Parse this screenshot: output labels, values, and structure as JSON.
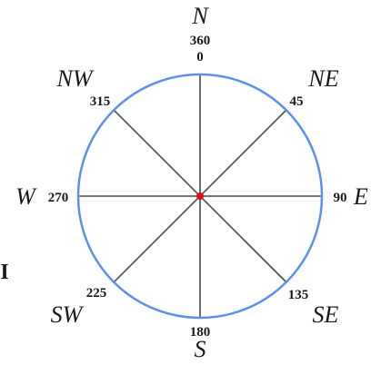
{
  "colors": {
    "circle": "#5b8ff0",
    "spokes": "#4a4a4a",
    "center": "#e01010",
    "text": "#1a1a1a"
  },
  "compass": {
    "north": {
      "letter": "N",
      "deg_top": "360",
      "deg_bottom": "0"
    },
    "northeast": {
      "letter": "NE",
      "deg": "45"
    },
    "east": {
      "letter": "E",
      "deg": "90"
    },
    "southeast": {
      "letter": "SE",
      "deg": "135"
    },
    "south": {
      "letter": "S",
      "deg": "180"
    },
    "southwest": {
      "letter": "SW",
      "deg": "225"
    },
    "west": {
      "letter": "W",
      "deg": "270"
    },
    "northwest": {
      "letter": "NW",
      "deg": "315"
    }
  },
  "edge_glyph": "I"
}
